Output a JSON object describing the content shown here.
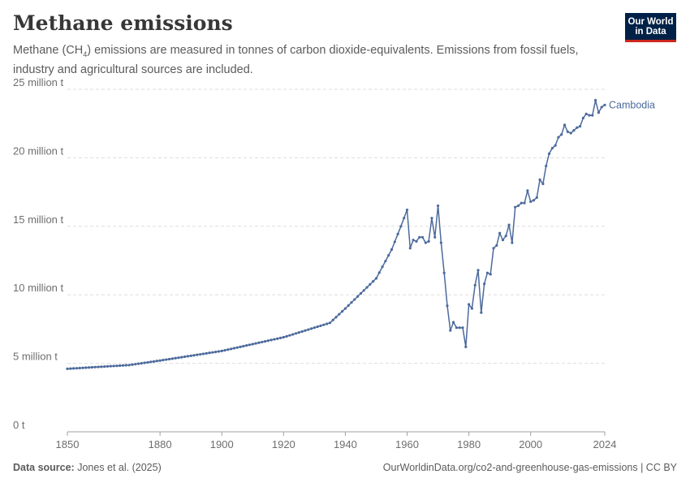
{
  "header": {
    "title": "Methane emissions",
    "subtitle_pre": "Methane (CH",
    "subtitle_sub": "4",
    "subtitle_post": ") emissions are measured in tonnes of carbon dioxide-equivalents. Emissions from fossil fuels, industry and agricultural sources are included."
  },
  "logo": {
    "line1": "Our World",
    "line2": "in Data"
  },
  "footer": {
    "source_label": "Data source:",
    "source_value": " Jones et al. (2025)",
    "url": "OurWorldinData.org/co2-and-greenhouse-gas-emissions | CC BY"
  },
  "chart_data": {
    "type": "line",
    "title": "Methane emissions",
    "xlabel": "",
    "ylabel": "",
    "xlim": [
      1850,
      2024
    ],
    "ylim": [
      0,
      25000000
    ],
    "grid": true,
    "x_ticks": [
      1850,
      1880,
      1900,
      1920,
      1940,
      1960,
      1980,
      2000,
      2024
    ],
    "y_ticks": [
      {
        "value": 0,
        "label": "0 t"
      },
      {
        "value": 5000000,
        "label": "5 million t"
      },
      {
        "value": 10000000,
        "label": "10 million t"
      },
      {
        "value": 15000000,
        "label": "15 million t"
      },
      {
        "value": 20000000,
        "label": "20 million t"
      },
      {
        "value": 25000000,
        "label": "25 million t"
      }
    ],
    "series": [
      {
        "name": "Cambodia",
        "color": "#4c6a9c",
        "x": [
          1850,
          1870,
          1880,
          1900,
          1920,
          1935,
          1940,
          1950,
          1955,
          1958,
          1960,
          1961,
          1962,
          1963,
          1964,
          1965,
          1966,
          1967,
          1968,
          1969,
          1970,
          1971,
          1972,
          1973,
          1974,
          1975,
          1976,
          1977,
          1978,
          1979,
          1980,
          1981,
          1982,
          1983,
          1984,
          1985,
          1986,
          1987,
          1988,
          1989,
          1990,
          1991,
          1992,
          1993,
          1994,
          1995,
          1996,
          1997,
          1998,
          1999,
          2000,
          2001,
          2002,
          2003,
          2004,
          2005,
          2006,
          2007,
          2008,
          2009,
          2010,
          2011,
          2012,
          2013,
          2014,
          2015,
          2016,
          2017,
          2018,
          2019,
          2020,
          2021,
          2022,
          2023,
          2024
        ],
        "values": [
          4600000,
          4870000,
          5200000,
          5900000,
          6900000,
          7950000,
          9000000,
          11200000,
          13300000,
          15000000,
          16200000,
          13400000,
          14000000,
          13900000,
          14200000,
          14200000,
          13800000,
          13900000,
          15600000,
          14200000,
          16500000,
          13800000,
          11600000,
          9200000,
          7400000,
          8000000,
          7600000,
          7600000,
          7600000,
          6200000,
          9300000,
          9000000,
          10700000,
          11800000,
          8700000,
          10800000,
          11600000,
          11500000,
          13400000,
          13600000,
          14500000,
          14000000,
          14300000,
          15100000,
          13800000,
          16400000,
          16500000,
          16700000,
          16700000,
          17600000,
          16800000,
          16900000,
          17100000,
          18400000,
          18100000,
          19400000,
          20300000,
          20700000,
          20900000,
          21500000,
          21700000,
          22400000,
          21900000,
          21800000,
          22000000,
          22200000,
          22300000,
          22900000,
          23200000,
          23100000,
          23100000,
          24200000,
          23300000,
          23700000,
          23850000
        ]
      }
    ]
  }
}
